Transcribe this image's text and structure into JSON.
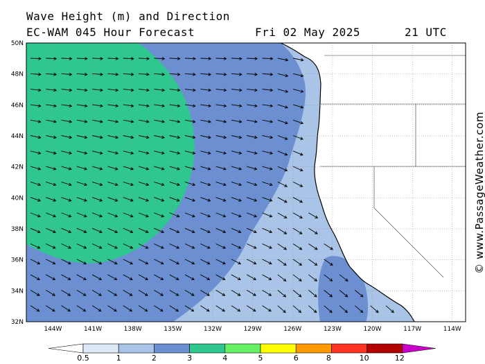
{
  "header": {
    "title": "Wave Height (m) and Direction",
    "model": "EC-WAM 045 Hour Forecast",
    "date": "Fri 02 May 2025",
    "time": "21 UTC"
  },
  "watermark": "© www.PassageWeather.com",
  "map": {
    "lat_labels": [
      "50N",
      "48N",
      "46N",
      "44N",
      "42N",
      "40N",
      "38N",
      "36N",
      "34N",
      "32N"
    ],
    "lon_labels": [
      "144W",
      "141W",
      "138W",
      "135W",
      "132W",
      "129W",
      "126W",
      "123W",
      "120W",
      "117W",
      "114W"
    ],
    "lat_range": [
      32,
      50
    ],
    "lon_range": [
      -146,
      -113
    ],
    "land_color": "#ffffff",
    "arrow_direction": "from northwest, pointing east to southeast"
  },
  "colorbar": {
    "labels": [
      "0.5",
      "1",
      "2",
      "3",
      "4",
      "5",
      "6",
      "8",
      "10",
      "12"
    ],
    "colors": [
      "#ffffff",
      "#dde9f7",
      "#a9c4e6",
      "#6b8fd0",
      "#2fc68f",
      "#66f065",
      "#ffff00",
      "#ff9900",
      "#ff3322",
      "#b30000",
      "#cc00cc"
    ]
  }
}
